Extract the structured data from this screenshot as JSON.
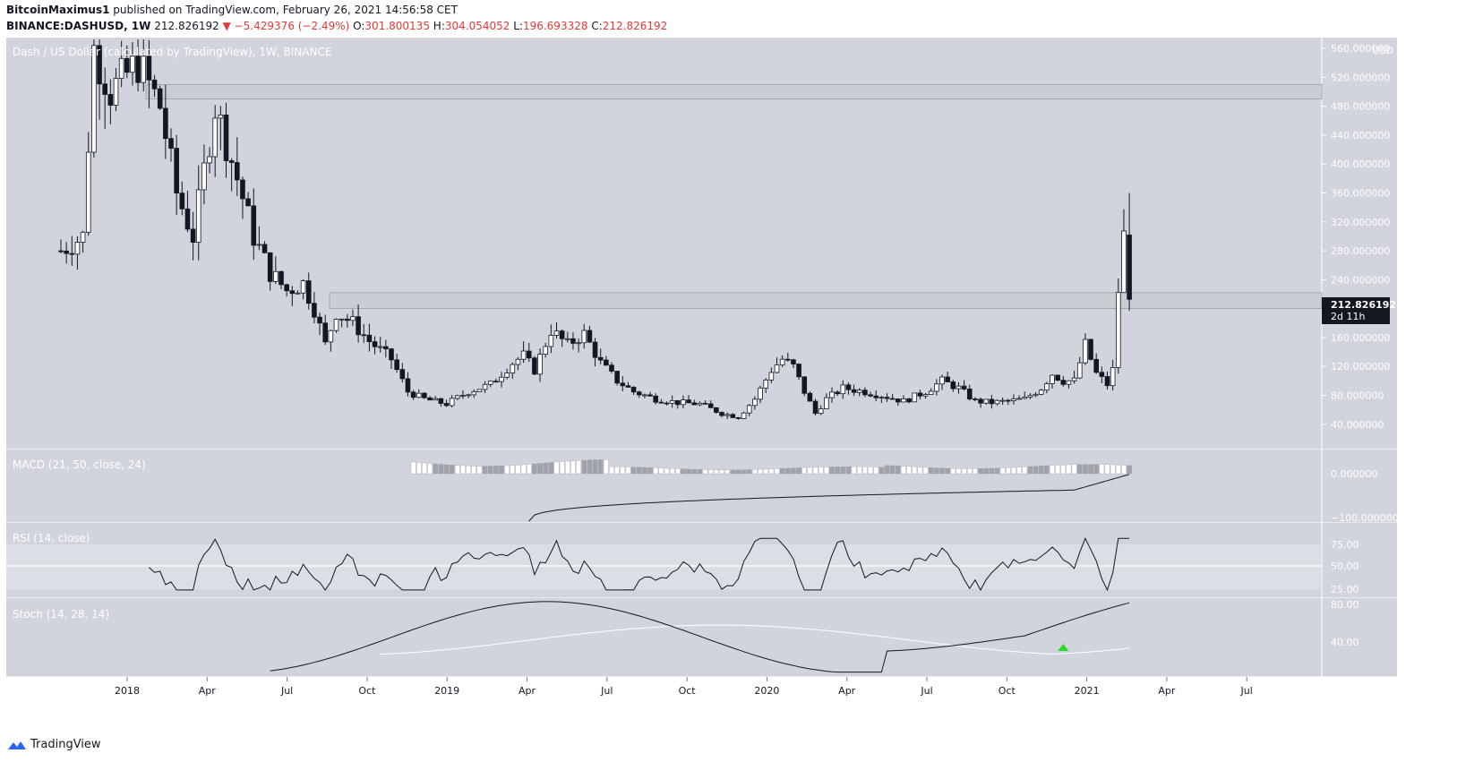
{
  "header": {
    "author": "BitcoinMaximus1",
    "published_text": "published on TradingView.com, February 26, 2021 14:56:58 CET",
    "symbol": "BINANCE:DASHUSD, 1W",
    "close_value": "212.826192",
    "change": "−5.429376 (−2.49%)",
    "o_label": "O:",
    "o_value": "301.800135",
    "h_label": "H:",
    "h_value": "304.054052",
    "l_label": "L:",
    "l_value": "196.693328",
    "c_label": "C:",
    "c_value": "212.826192"
  },
  "main_pane": {
    "legend": "Dash / US Dollar (calculated by TradingView), 1W, BINANCE",
    "currency": "USD",
    "price_label": "212.826192",
    "countdown": "2d 11h",
    "resistance_zone": [
      490,
      510
    ],
    "support_zone": [
      200,
      222
    ]
  },
  "macd_pane": {
    "legend": "MACD (21, 50, close, 24)"
  },
  "rsi_pane": {
    "legend": "RSI (14, close)"
  },
  "stoch_pane": {
    "legend": "Stoch (14, 28, 14)"
  },
  "footer": {
    "brand": "TradingView"
  },
  "colors": {
    "pane_bg": "#d1d4dc",
    "candle_up": "#ffffff",
    "candle_down": "#131722",
    "wick": "#131722",
    "zone": "#c5c8cf",
    "signal_arrow": "#22dd22",
    "price_tag": "#131722"
  },
  "chart_data": {
    "type": "candlestick",
    "interval": "1W",
    "ylim": [
      10,
      570
    ],
    "x_tick_labels": [
      "2018",
      "Apr",
      "Jul",
      "Oct",
      "2019",
      "Apr",
      "Jul",
      "Oct",
      "2020",
      "Apr",
      "Jul",
      "Oct",
      "2021",
      "Apr",
      "Jul"
    ],
    "y_tick_labels": [
      "560.000000",
      "520.000000",
      "480.000000",
      "440.000000",
      "400.000000",
      "360.000000",
      "320.000000",
      "280.000000",
      "240.000000",
      "200.000000",
      "160.000000",
      "120.000000",
      "80.000000",
      "40.000000"
    ],
    "macd_tick_labels": [
      "0.000000",
      "−100.000000"
    ],
    "rsi_tick_labels": [
      "75.00",
      "50.00",
      "25.00"
    ],
    "stoch_tick_labels": [
      "80.00",
      "40.00"
    ],
    "anchors": [
      [
        0,
        280
      ],
      [
        4,
        300
      ],
      [
        6,
        560
      ],
      [
        9,
        500
      ],
      [
        14,
        540
      ],
      [
        18,
        480
      ],
      [
        21,
        360
      ],
      [
        24,
        300
      ],
      [
        28,
        480
      ],
      [
        32,
        380
      ],
      [
        35,
        300
      ],
      [
        38,
        250
      ],
      [
        41,
        225
      ],
      [
        44,
        235
      ],
      [
        46,
        200
      ],
      [
        48,
        150
      ],
      [
        50,
        195
      ],
      [
        53,
        180
      ],
      [
        56,
        155
      ],
      [
        60,
        130
      ],
      [
        63,
        85
      ],
      [
        66,
        75
      ],
      [
        70,
        68
      ],
      [
        74,
        85
      ],
      [
        78,
        95
      ],
      [
        82,
        125
      ],
      [
        84,
        135
      ],
      [
        86,
        115
      ],
      [
        89,
        170
      ],
      [
        92,
        150
      ],
      [
        95,
        165
      ],
      [
        98,
        125
      ],
      [
        101,
        100
      ],
      [
        104,
        85
      ],
      [
        108,
        75
      ],
      [
        112,
        70
      ],
      [
        116,
        68
      ],
      [
        120,
        55
      ],
      [
        123,
        50
      ],
      [
        126,
        75
      ],
      [
        129,
        115
      ],
      [
        131,
        130
      ],
      [
        133,
        120
      ],
      [
        135,
        85
      ],
      [
        137,
        55
      ],
      [
        139,
        75
      ],
      [
        142,
        90
      ],
      [
        146,
        85
      ],
      [
        150,
        78
      ],
      [
        153,
        72
      ],
      [
        157,
        85
      ],
      [
        160,
        100
      ],
      [
        163,
        90
      ],
      [
        166,
        72
      ],
      [
        169,
        70
      ],
      [
        172,
        72
      ],
      [
        175,
        75
      ],
      [
        178,
        90
      ],
      [
        180,
        110
      ],
      [
        182,
        100
      ],
      [
        184,
        100
      ],
      [
        186,
        150
      ],
      [
        188,
        110
      ],
      [
        190,
        95
      ],
      [
        191,
        115
      ],
      [
        192,
        225
      ],
      [
        193,
        300
      ],
      [
        194,
        213
      ]
    ]
  }
}
